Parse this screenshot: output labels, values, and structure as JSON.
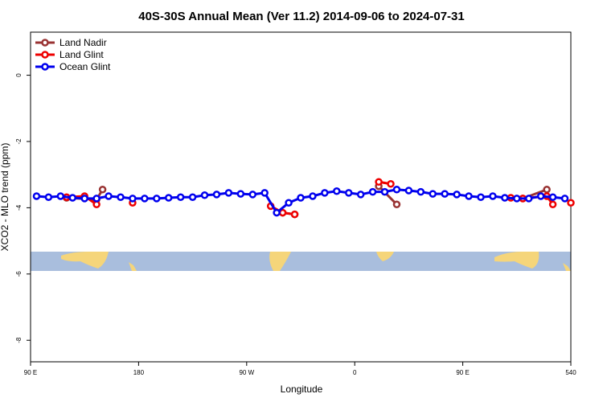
{
  "chart_data": {
    "type": "line",
    "title": "40S-30S Annual Mean (Ver 11.2)   2014-09-06 to 2024-07-31",
    "x_label": "Longitude",
    "y_label": "XCO2 - MLO trend (ppm)",
    "xlim": [
      90,
      540
    ],
    "ylim": [
      -8.65,
      1.3
    ],
    "xticks": [
      {
        "value": 90,
        "label": "90 E"
      },
      180,
      {
        "value": 270,
        "label": "90 W"
      },
      {
        "value": 360,
        "label": "0"
      },
      {
        "value": 450,
        "label": "90 E"
      },
      540
    ],
    "yticks": [
      0,
      -2,
      -4,
      -6,
      -8
    ],
    "legend": "top-left",
    "series": [
      {
        "name": "Land Nadir",
        "color": "#993333",
        "x": [
          120,
          145,
          150,
          null,
          300,
          310,
          null,
          380,
          395,
          null,
          500,
          520
        ],
        "values": [
          -3.7,
          -3.75,
          -3.45,
          null,
          -4.15,
          -4.2,
          null,
          -3.35,
          -3.9,
          null,
          -3.72,
          -3.45
        ]
      },
      {
        "name": "Land Glint",
        "color": "#ee0000",
        "x": [
          120,
          135,
          145,
          null,
          175,
          null,
          290,
          300,
          310,
          null,
          380,
          390,
          null,
          490,
          500,
          520,
          525,
          null,
          540
        ],
        "values": [
          -3.68,
          -3.65,
          -3.9,
          null,
          -3.85,
          null,
          -3.95,
          -4.15,
          -4.2,
          null,
          -3.22,
          -3.28,
          null,
          -3.7,
          -3.72,
          -3.65,
          -3.9,
          null,
          -3.85
        ]
      },
      {
        "name": "Ocean Glint",
        "color": "#0000ee",
        "x": [
          95,
          105,
          115,
          125,
          135,
          145,
          155,
          165,
          175,
          185,
          195,
          205,
          215,
          225,
          235,
          245,
          255,
          265,
          275,
          285,
          295,
          305,
          315,
          325,
          335,
          345,
          355,
          365,
          375,
          385,
          395,
          405,
          415,
          425,
          435,
          445,
          455,
          465,
          475,
          485,
          495,
          505,
          515,
          525,
          535
        ],
        "values": [
          -3.65,
          -3.68,
          -3.65,
          -3.7,
          -3.72,
          -3.72,
          -3.65,
          -3.68,
          -3.72,
          -3.72,
          -3.72,
          -3.7,
          -3.68,
          -3.68,
          -3.62,
          -3.6,
          -3.55,
          -3.58,
          -3.6,
          -3.55,
          -4.15,
          -3.85,
          -3.7,
          -3.65,
          -3.55,
          -3.5,
          -3.55,
          -3.6,
          -3.52,
          -3.52,
          -3.45,
          -3.48,
          -3.52,
          -3.58,
          -3.58,
          -3.6,
          -3.65,
          -3.68,
          -3.65,
          -3.7,
          -3.72,
          -3.72,
          -3.65,
          -3.68,
          -3.72
        ]
      }
    ]
  }
}
